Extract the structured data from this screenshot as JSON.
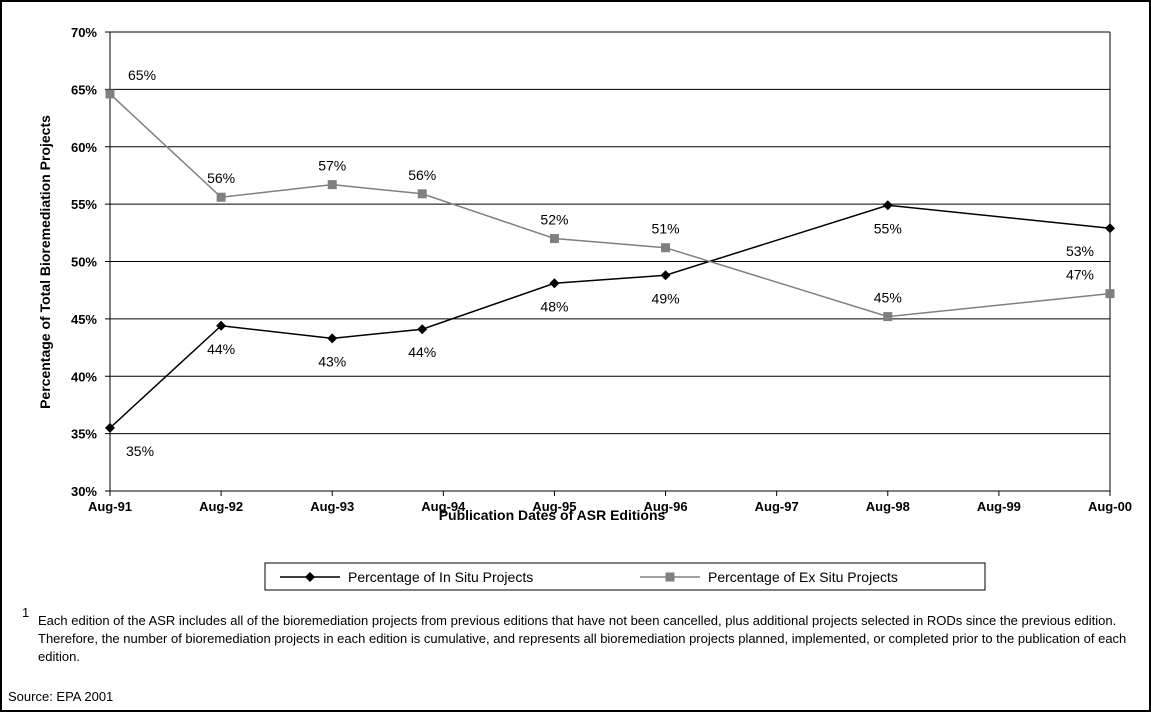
{
  "chart_data": {
    "type": "line",
    "xlabel": "Publication Dates of ASR Editions",
    "ylabel": "Percentage of Total Bioremediation Projects",
    "x": [
      1991.58,
      1992.58,
      1993.58,
      1994.39,
      1995.58,
      1996.58,
      1998.58,
      2000.58
    ],
    "series": [
      {
        "name": "Percentage of In Situ Projects",
        "color": "#000000",
        "marker": "diamond",
        "values": [
          35.5,
          44.4,
          43.3,
          44.1,
          48.1,
          48.8,
          54.9,
          52.9
        ],
        "value_labels": [
          "35%",
          "44%",
          "43%",
          "44%",
          "48%",
          "49%",
          "55%",
          "53%"
        ]
      },
      {
        "name": "Percentage of Ex Situ Projects",
        "color": "#808080",
        "marker": "square",
        "values": [
          64.6,
          55.6,
          56.7,
          55.9,
          52.0,
          51.2,
          45.2,
          47.2
        ],
        "value_labels": [
          "65%",
          "56%",
          "57%",
          "56%",
          "52%",
          "51%",
          "45%",
          "47%"
        ]
      }
    ],
    "xlim": [
      1991.58,
      2000.58
    ],
    "xticks": [
      {
        "value": 1991.58,
        "label": "Aug-91"
      },
      {
        "value": 1992.58,
        "label": "Aug-92"
      },
      {
        "value": 1993.58,
        "label": "Aug-93"
      },
      {
        "value": 1994.58,
        "label": "Aug-94"
      },
      {
        "value": 1995.58,
        "label": "Aug-95"
      },
      {
        "value": 1996.58,
        "label": "Aug-96"
      },
      {
        "value": 1997.58,
        "label": "Aug-97"
      },
      {
        "value": 1998.58,
        "label": "Aug-98"
      },
      {
        "value": 1999.58,
        "label": "Aug-99"
      },
      {
        "value": 2000.58,
        "label": "Aug-00"
      }
    ],
    "ylim": [
      30,
      70
    ],
    "yticks": [
      {
        "value": 30,
        "label": "30%"
      },
      {
        "value": 35,
        "label": "35%"
      },
      {
        "value": 40,
        "label": "40%"
      },
      {
        "value": 45,
        "label": "45%"
      },
      {
        "value": 50,
        "label": "50%"
      },
      {
        "value": 55,
        "label": "55%"
      },
      {
        "value": 60,
        "label": "60%"
      },
      {
        "value": 65,
        "label": "65%"
      },
      {
        "value": 70,
        "label": "70%"
      }
    ],
    "grid": true,
    "legend": "bottom",
    "footnote_mark": "1",
    "footnote": "Each edition of the ASR includes all of the bioremediation projects from previous editions that have not been cancelled, plus additional projects selected in RODs since the previous edition.  Therefore, the number of bioremediation projects in each edition is cumulative, and represents all bioremediation projects planned, implemented, or completed prior to the publication of each edition.",
    "source": "Source:  EPA 2001"
  }
}
